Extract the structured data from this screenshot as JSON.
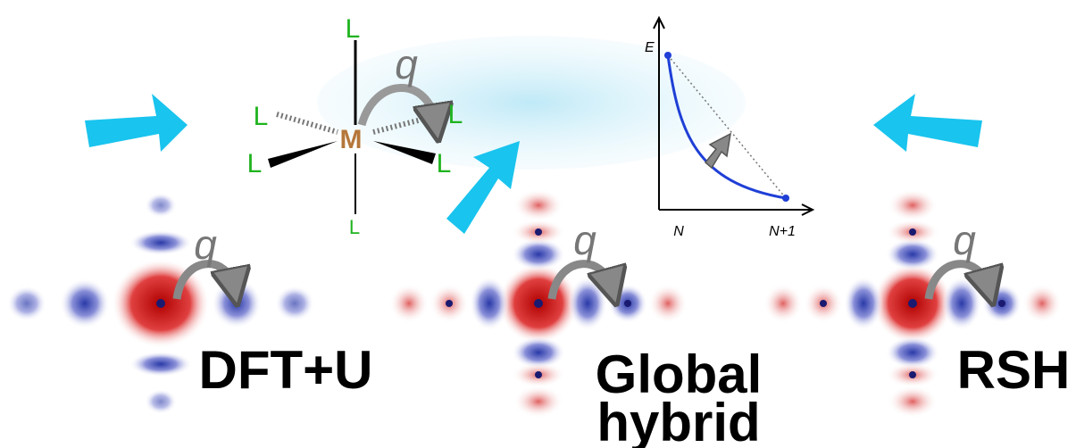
{
  "complex": {
    "metal": "M",
    "ligands": [
      "L",
      "L",
      "L",
      "L",
      "L",
      "L"
    ],
    "charge": "q"
  },
  "inset": {
    "y_label": "E",
    "x_labels": [
      "N",
      "N+1"
    ]
  },
  "panels": [
    {
      "label": [
        "DFT+U"
      ],
      "charge": "q"
    },
    {
      "label": [
        "Global",
        "hybrid"
      ],
      "charge": "q"
    },
    {
      "label": [
        "RSH"
      ],
      "charge": "q"
    }
  ]
}
